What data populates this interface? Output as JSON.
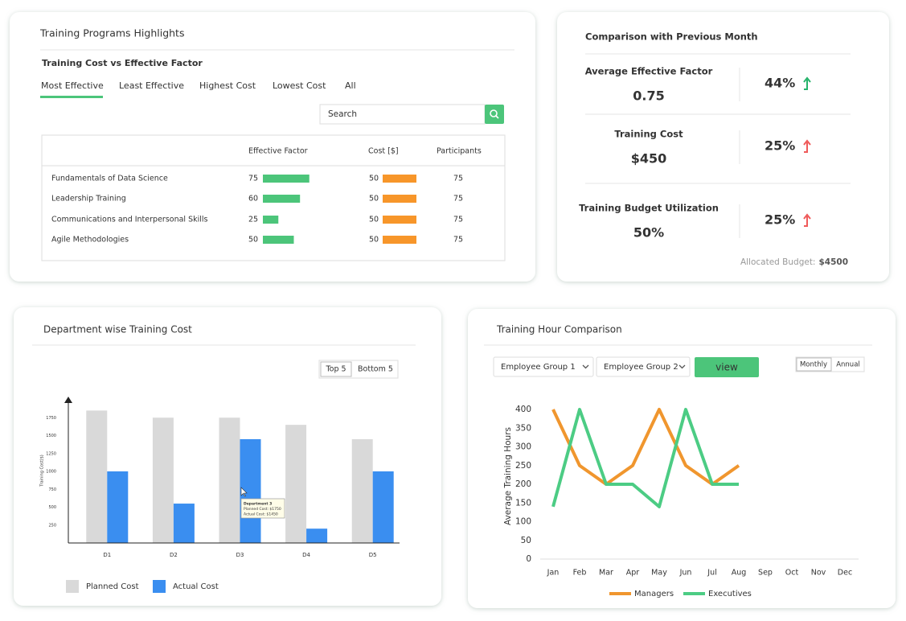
{
  "training_highlights": {
    "title": "Training Programs Highlights",
    "subtitle": "Training Cost vs Effective Factor",
    "tabs": [
      "Most Effective",
      "Least Effective",
      "Highest Cost",
      "Lowest Cost",
      "All"
    ],
    "search_placeholder": "Search",
    "columns": [
      "Effective Factor",
      "Cost [$]",
      "Participants"
    ],
    "rows": [
      {
        "name": "Fundamentals of Data Science",
        "effective_factor": 75,
        "cost": 50,
        "participants": 75
      },
      {
        "name": "Leadership Training",
        "effective_factor": 60,
        "cost": 50,
        "participants": 75
      },
      {
        "name": "Communications and Interpersonal Skills",
        "effective_factor": 25,
        "cost": 50,
        "participants": 75
      },
      {
        "name": "Agile Methodologies",
        "effective_factor": 50,
        "cost": 50,
        "participants": 75
      }
    ],
    "effective_color": "#4cc57a",
    "cost_color": "#f7962a"
  },
  "comparison": {
    "title": "Comparison with Previous Month",
    "items": [
      {
        "label": "Average Effective Factor",
        "value": "0.75",
        "change": "44%",
        "color": "#26b36b"
      },
      {
        "label": "Training Cost",
        "value": "$450",
        "change": "25%",
        "color": "#ef5a5a"
      },
      {
        "label": "Training Budget Utilization",
        "value": "50%",
        "change": "25%",
        "color": "#ef5a5a"
      }
    ],
    "budget_label": "Allocated Budget:",
    "budget_value": "$4500"
  },
  "department_cost": {
    "title": "Department wise Training Cost",
    "buttons": [
      "Top 5",
      "Bottom 5"
    ],
    "chart_data": {
      "type": "bar",
      "y_label": "Training Cost($)",
      "categories": [
        "D1",
        "D2",
        "D3",
        "D4",
        "D5"
      ],
      "series": [
        {
          "name": "Planned Cost",
          "color": "#d9d9d9",
          "values": [
            1850,
            1750,
            1750,
            1650,
            1450
          ]
        },
        {
          "name": "Actual Cost",
          "color": "#3a8ef0",
          "values": [
            1000,
            550,
            1450,
            200,
            1000
          ]
        }
      ],
      "ylim": [
        0,
        2000
      ],
      "yticks": [
        250,
        500,
        750,
        1000,
        1250,
        1500,
        1750
      ],
      "tooltip": [
        "Department 3",
        "Planned Cost: $1750",
        "Actual Cost: $1450"
      ]
    }
  },
  "training_hours": {
    "title": "Training Hour Comparison",
    "filters": [
      "Employee Group 1",
      "Employee Group 2"
    ],
    "button": "view",
    "periods": [
      "Monthly",
      "Annual"
    ],
    "chart_data": {
      "type": "line",
      "y_label": "Average Training Hours",
      "categories": [
        "Jan",
        "Feb",
        "Mar",
        "Apr",
        "May",
        "Jun",
        "Jul",
        "Aug",
        "Sep",
        "Oct",
        "Nov",
        "Dec"
      ],
      "series": [
        {
          "name": "Managers",
          "color": "#f0962e",
          "values": [
            400,
            250,
            200,
            250,
            400,
            250,
            200,
            250,
            null,
            null,
            null,
            null
          ]
        },
        {
          "name": "Executives",
          "color": "#4ccc84",
          "values": [
            140,
            400,
            200,
            200,
            140,
            400,
            200,
            200,
            null,
            null,
            null,
            null
          ]
        }
      ],
      "ylim": [
        0,
        400
      ],
      "yticks": [
        0,
        50,
        100,
        150,
        200,
        250,
        300,
        350,
        400
      ]
    }
  }
}
